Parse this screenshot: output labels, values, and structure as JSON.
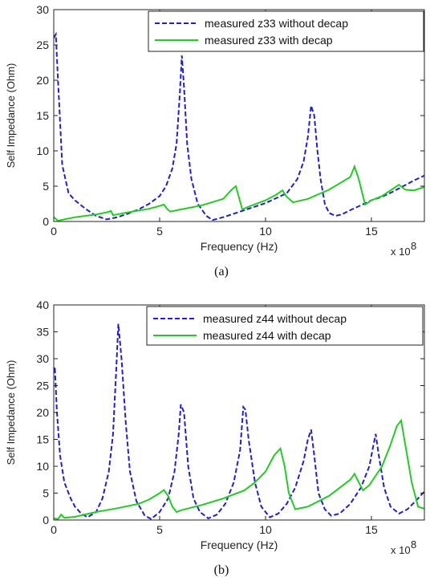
{
  "chart_data": [
    {
      "type": "line",
      "panel": "(a)",
      "xlabel": "Frequency (Hz)",
      "ylabel": "Self Impedance (Ohm)",
      "x_multiplier_label": "x 10",
      "x_multiplier_exp": "8",
      "xlim": [
        0,
        17.5
      ],
      "ylim": [
        0,
        30
      ],
      "xticks": [
        0,
        5,
        10,
        15
      ],
      "yticks": [
        0,
        5,
        10,
        15,
        20,
        25,
        30
      ],
      "legend_position": "top-right",
      "series": [
        {
          "name": "measured z33 without decap",
          "color": "#1f1fcc",
          "style": "dashed",
          "x": [
            0,
            0.1,
            0.2,
            0.4,
            0.7,
            1.0,
            1.5,
            2.0,
            2.5,
            3.0,
            3.5,
            4.0,
            4.5,
            5.0,
            5.3,
            5.6,
            5.8,
            5.95,
            6.05,
            6.15,
            6.3,
            6.5,
            6.8,
            7.2,
            7.5,
            8.0,
            9.0,
            10.0,
            11.0,
            11.5,
            11.8,
            12.0,
            12.15,
            12.3,
            12.45,
            12.6,
            12.8,
            13.0,
            13.3,
            13.6,
            14.0,
            14.5,
            15.0,
            15.5,
            16.0,
            16.5,
            17.0,
            17.5
          ],
          "y": [
            26,
            26.5,
            20,
            8,
            4,
            3,
            1.8,
            0.8,
            0.3,
            0.6,
            1.1,
            1.7,
            2.5,
            3.6,
            5,
            7.5,
            11,
            18,
            23.5,
            19,
            11,
            6,
            2.5,
            0.8,
            0.2,
            0.6,
            1.6,
            2.6,
            4,
            6,
            8.5,
            12,
            16.4,
            15,
            10,
            6,
            2.5,
            1.2,
            0.8,
            1.0,
            1.6,
            2.3,
            3,
            3.5,
            4.2,
            5,
            5.8,
            6.5
          ]
        },
        {
          "name": "measured z33 with decap",
          "color": "#22cc22",
          "style": "solid",
          "x": [
            0,
            0.2,
            0.5,
            1.0,
            1.5,
            2.0,
            2.5,
            2.7,
            2.8,
            3.0,
            3.5,
            4.5,
            5.0,
            5.2,
            5.35,
            5.5,
            6.0,
            7.0,
            8.0,
            8.4,
            8.6,
            8.9,
            9.2,
            10.0,
            10.5,
            10.8,
            11.0,
            11.3,
            12.0,
            13.0,
            14.0,
            14.2,
            14.4,
            14.7,
            15.0,
            15.5,
            16.0,
            16.3,
            16.6,
            17.0,
            17.5
          ],
          "y": [
            0.6,
            0.1,
            0.3,
            0.6,
            0.8,
            1.0,
            1.3,
            1.5,
            0.9,
            1.0,
            1.3,
            1.8,
            2.2,
            2.4,
            1.8,
            1.4,
            1.7,
            2.3,
            3.2,
            4.5,
            5.0,
            1.7,
            2.1,
            3.0,
            3.8,
            4.4,
            3.5,
            2.7,
            3.2,
            4.5,
            6.3,
            7.8,
            6.0,
            2.4,
            3.0,
            3.6,
            4.6,
            5.2,
            4.5,
            4.4,
            4.9
          ]
        }
      ]
    },
    {
      "type": "line",
      "panel": "(b)",
      "xlabel": "Frequency (Hz)",
      "ylabel": "Self Impedance (Ohm)",
      "x_multiplier_label": "x 10",
      "x_multiplier_exp": "8",
      "xlim": [
        0,
        17.5
      ],
      "ylim": [
        0,
        40
      ],
      "xticks": [
        0,
        5,
        10,
        15
      ],
      "yticks": [
        0,
        5,
        10,
        15,
        20,
        25,
        30,
        35,
        40
      ],
      "legend_position": "top-right",
      "series": [
        {
          "name": "measured z44 without decap",
          "color": "#1f1fcc",
          "style": "dashed",
          "x": [
            0,
            0.05,
            0.15,
            0.3,
            0.5,
            0.8,
            1.0,
            1.3,
            1.6,
            2.0,
            2.3,
            2.6,
            2.8,
            2.95,
            3.05,
            3.2,
            3.4,
            3.6,
            3.9,
            4.3,
            4.6,
            5.0,
            5.4,
            5.7,
            5.9,
            6.0,
            6.15,
            6.35,
            6.6,
            6.9,
            7.3,
            7.7,
            8.1,
            8.5,
            8.8,
            8.95,
            9.05,
            9.2,
            9.5,
            9.8,
            10.2,
            10.6,
            11.0,
            11.4,
            11.8,
            12.0,
            12.15,
            12.3,
            12.5,
            12.8,
            13.1,
            13.5,
            14.0,
            14.5,
            14.9,
            15.1,
            15.2,
            15.35,
            15.6,
            15.9,
            16.3,
            16.7,
            17.2,
            17.5
          ],
          "y": [
            27.5,
            28.5,
            20,
            12,
            7,
            4,
            2.5,
            1.2,
            0.5,
            1.5,
            4,
            9,
            16,
            28,
            36.5,
            30,
            18,
            9,
            3.5,
            0.8,
            0.2,
            1.5,
            4,
            9,
            16,
            21.5,
            20,
            10,
            4,
            1.5,
            0.3,
            1.0,
            3,
            7,
            13,
            21,
            20.5,
            15,
            7,
            2.5,
            0.5,
            1.2,
            3,
            6,
            11,
            15,
            16.8,
            12,
            5,
            2,
            0.8,
            1.2,
            3,
            6,
            10,
            14,
            16,
            12,
            6,
            2.5,
            1.2,
            2,
            4,
            5.3
          ]
        },
        {
          "name": "measured z44 with decap",
          "color": "#22cc22",
          "style": "solid",
          "x": [
            0,
            0.2,
            0.35,
            0.5,
            1.0,
            2.0,
            3.0,
            4.0,
            4.5,
            5.0,
            5.2,
            5.4,
            5.6,
            5.8,
            6.0,
            7.0,
            8.0,
            9.0,
            9.5,
            10.0,
            10.4,
            10.7,
            10.9,
            11.1,
            11.4,
            12.0,
            13.0,
            13.5,
            14.0,
            14.2,
            14.4,
            14.6,
            14.9,
            15.5,
            15.9,
            16.2,
            16.4,
            16.6,
            16.9,
            17.2,
            17.5
          ],
          "y": [
            0.3,
            0.2,
            1.0,
            0.4,
            0.6,
            1.5,
            2.2,
            3.0,
            3.8,
            5.0,
            5.6,
            4.5,
            2.5,
            1.5,
            1.8,
            2.8,
            4.0,
            5.5,
            7.0,
            9.0,
            12,
            13.3,
            10,
            5,
            2.0,
            2.5,
            4.5,
            6.0,
            7.5,
            8.6,
            7.0,
            5.5,
            6.5,
            10,
            14,
            17.5,
            18.5,
            14,
            7,
            2.5,
            2.1
          ]
        }
      ]
    }
  ],
  "captions": [
    "(a)",
    "(b)"
  ]
}
